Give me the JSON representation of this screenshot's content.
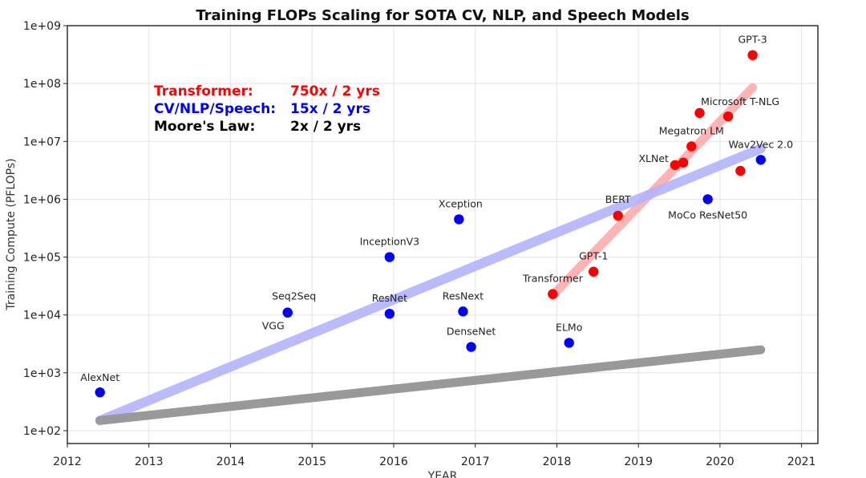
{
  "chart_data": {
    "type": "scatter",
    "title": "Training FLOPs Scaling for SOTA CV, NLP, and Speech Models",
    "xlabel": "YEAR",
    "ylabel": "Training Compute (PFLOPs)",
    "yscale": "log",
    "xlim": [
      2012,
      2021.2
    ],
    "ylim": [
      60,
      1000000000
    ],
    "grid": true,
    "x_ticks": [
      {
        "value": 2012,
        "label": "2012"
      },
      {
        "value": 2013,
        "label": "2013"
      },
      {
        "value": 2014,
        "label": "2014"
      },
      {
        "value": 2015,
        "label": "2015"
      },
      {
        "value": 2016,
        "label": "2016"
      },
      {
        "value": 2017,
        "label": "2017"
      },
      {
        "value": 2018,
        "label": "2018"
      },
      {
        "value": 2019,
        "label": "2019"
      },
      {
        "value": 2020,
        "label": "2020"
      },
      {
        "value": 2021,
        "label": "2021"
      }
    ],
    "y_ticks": [
      {
        "value": 100,
        "label": "1e+02"
      },
      {
        "value": 1000,
        "label": "1e+03"
      },
      {
        "value": 10000,
        "label": "1e+04"
      },
      {
        "value": 100000,
        "label": "1e+05"
      },
      {
        "value": 1000000,
        "label": "1e+06"
      },
      {
        "value": 10000000,
        "label": "1e+07"
      },
      {
        "value": 100000000,
        "label": "1e+08"
      },
      {
        "value": 1000000000,
        "label": "1e+09"
      }
    ],
    "series": [
      {
        "name": "CV/NLP/Speech",
        "color": "#0000ff",
        "points": [
          {
            "label": "AlexNet",
            "x": 2012.4,
            "y": 460
          },
          {
            "label": "VGG",
            "x": 2014.7,
            "y": 11000
          },
          {
            "label": "Seq2Seq",
            "x": 2014.7,
            "y": 11000
          },
          {
            "label": "InceptionV3",
            "x": 2015.95,
            "y": 100000
          },
          {
            "label": "ResNet",
            "x": 2015.95,
            "y": 10500
          },
          {
            "label": "Xception",
            "x": 2016.8,
            "y": 450000
          },
          {
            "label": "ResNext",
            "x": 2016.85,
            "y": 11500
          },
          {
            "label": "DenseNet",
            "x": 2016.95,
            "y": 2800
          },
          {
            "label": "ELMo",
            "x": 2018.15,
            "y": 3300
          },
          {
            "label": "MoCo ResNet50",
            "x": 2019.85,
            "y": 1000000
          },
          {
            "label": "Wav2Vec 2.0",
            "x": 2020.5,
            "y": 4800000
          }
        ]
      },
      {
        "name": "Transformer",
        "color": "#ff0000",
        "points": [
          {
            "label": "Transformer",
            "x": 2017.95,
            "y": 23000
          },
          {
            "label": "GPT-1",
            "x": 2018.45,
            "y": 56000
          },
          {
            "label": "BERT",
            "x": 2018.75,
            "y": 520000
          },
          {
            "label": "XLNet",
            "x": 2019.45,
            "y": 3900000
          },
          {
            "label": "",
            "x": 2019.55,
            "y": 4300000
          },
          {
            "label": "Megatron LM",
            "x": 2019.65,
            "y": 8200000
          },
          {
            "label": "",
            "x": 2019.75,
            "y": 31000000
          },
          {
            "label": "Microsoft T-NLG",
            "x": 2020.1,
            "y": 27000000
          },
          {
            "label": "",
            "x": 2020.25,
            "y": 3100000
          },
          {
            "label": "GPT-3",
            "x": 2020.4,
            "y": 310000000
          }
        ]
      }
    ],
    "trend_lines": [
      {
        "name": "Transformer",
        "color": "#ff9999",
        "from": {
          "x": 2017.95,
          "y": 22000
        },
        "to": {
          "x": 2020.4,
          "y": 85000000
        }
      },
      {
        "name": "CV/NLP/Speech",
        "color": "#b3b3ff",
        "from": {
          "x": 2012.4,
          "y": 150
        },
        "to": {
          "x": 2020.5,
          "y": 7500000
        }
      },
      {
        "name": "Moore's Law",
        "color": "#999999",
        "from": {
          "x": 2012.4,
          "y": 150
        },
        "to": {
          "x": 2020.5,
          "y": 2500
        }
      }
    ],
    "annotations": [
      {
        "name": "Transformer:",
        "rate": "750x / 2 yrs",
        "color": "#ff0000"
      },
      {
        "name": "CV/NLP/Speech:",
        "rate": "15x / 2 yrs",
        "color": "#0000ff"
      },
      {
        "name": "Moore's Law:",
        "rate": "2x / 2 yrs",
        "color": "#000000"
      }
    ]
  }
}
